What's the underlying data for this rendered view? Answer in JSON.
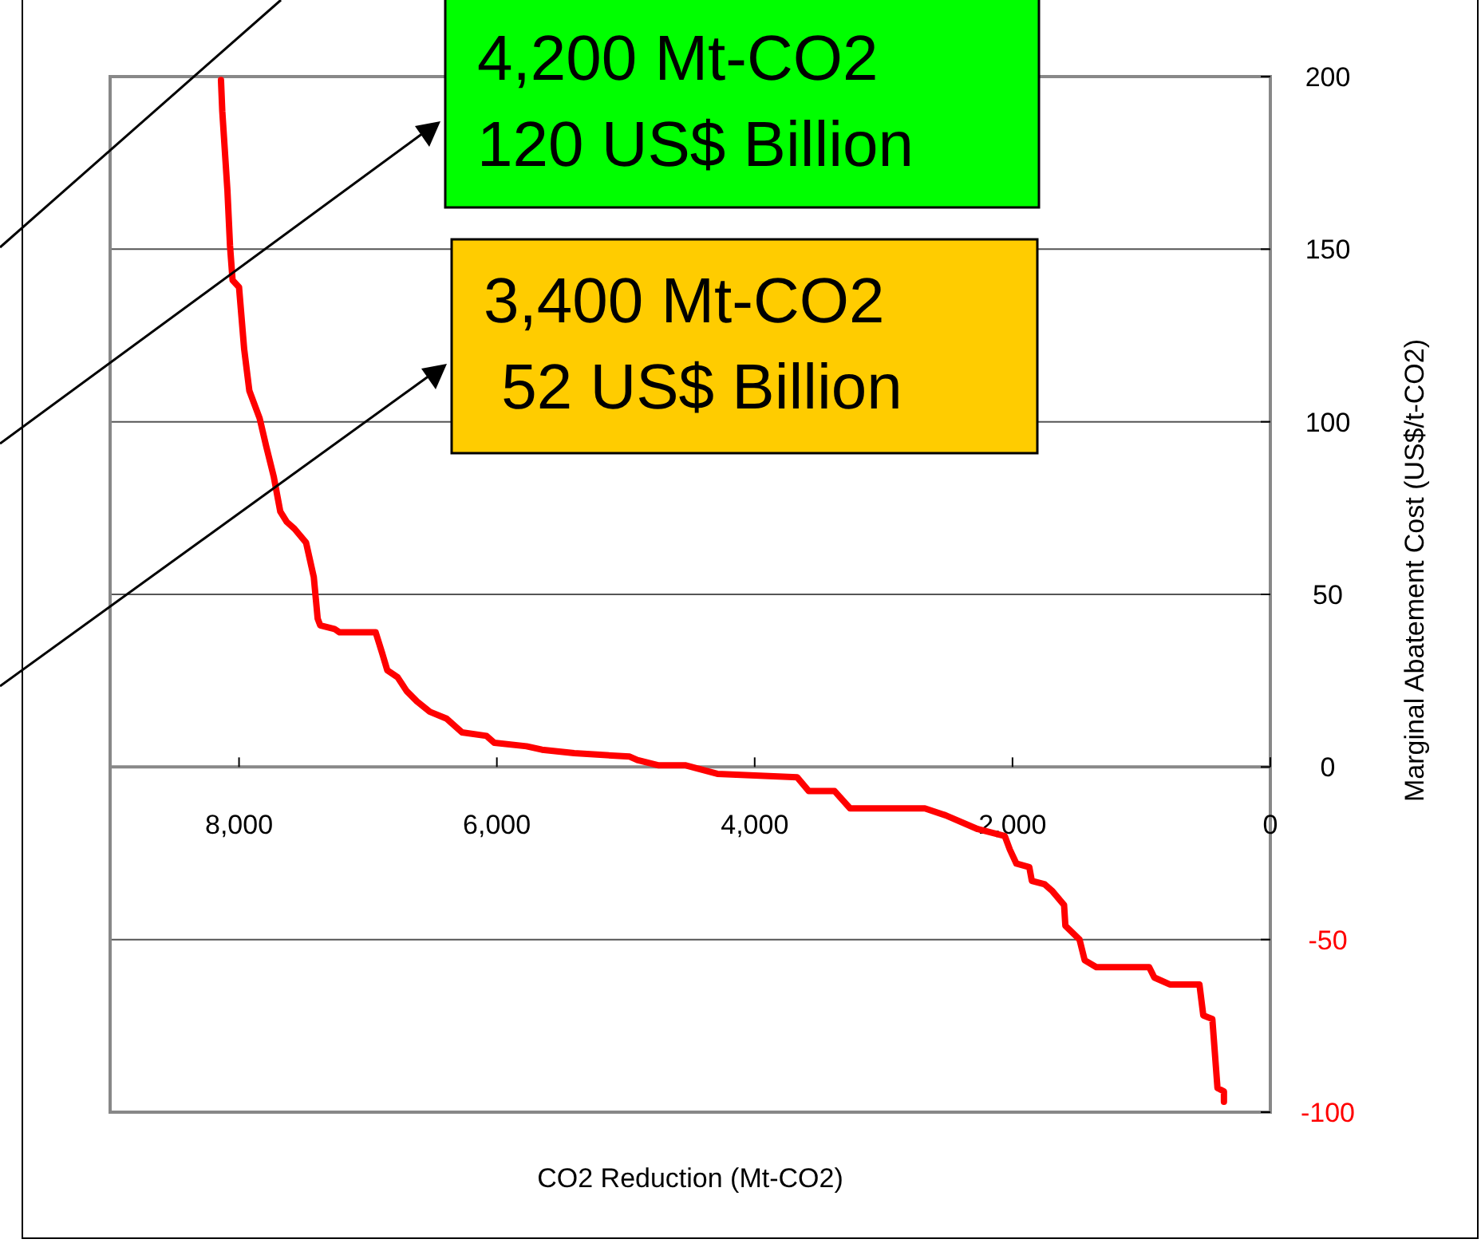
{
  "chart_data": {
    "type": "line",
    "xlabel": "CO2 Reduction (Mt-CO2)",
    "ylabel": "Marginal Abatement Cost (US$/t-CO2)",
    "x": [
      8140,
      8130,
      8090,
      8070,
      8050,
      8000,
      7960,
      7920,
      7840,
      7790,
      7730,
      7680,
      7630,
      7570,
      7480,
      7420,
      7390,
      7370,
      7260,
      7220,
      6940,
      6890,
      6850,
      6770,
      6700,
      6620,
      6520,
      6390,
      6270,
      6080,
      6020,
      5770,
      5650,
      5400,
      4970,
      4910,
      4750,
      4540,
      4290,
      3670,
      3580,
      3380,
      3260,
      2680,
      2520,
      2270,
      2060,
      2020,
      1970,
      1870,
      1850,
      1750,
      1690,
      1600,
      1590,
      1480,
      1440,
      1350,
      940,
      900,
      780,
      550,
      520,
      450,
      410,
      360,
      360
    ],
    "series": [
      {
        "color": "#ff0000",
        "values": [
          199,
          190,
          167,
          151,
          141,
          139,
          121,
          109,
          101,
          93,
          84,
          74,
          71,
          69,
          65,
          55,
          43,
          41,
          40,
          39,
          39,
          33,
          28,
          26,
          22,
          19,
          16,
          14,
          10,
          9,
          7,
          6,
          5,
          4,
          3,
          2,
          0.5,
          0.5,
          -2,
          -3,
          -7,
          -7,
          -12,
          -12,
          -14,
          -18,
          -20,
          -24,
          -28,
          -29,
          -33,
          -34,
          -36,
          -40,
          -46,
          -50,
          -56,
          -58,
          -58,
          -61,
          -63,
          -63,
          -72,
          -73,
          -93,
          -94,
          -97
        ]
      }
    ],
    "xlim": [
      9000,
      0
    ],
    "xticks": [
      {
        "value": 8000,
        "label": "8,000"
      },
      {
        "value": 6000,
        "label": "6,000"
      },
      {
        "value": 4000,
        "label": "4,000"
      },
      {
        "value": 2000,
        "label": "2,000"
      },
      0
    ],
    "ylim": [
      -100,
      200
    ],
    "yticks": [
      -100,
      -50,
      0,
      50,
      100,
      150,
      200
    ],
    "grid": "y",
    "line_style": "solid",
    "marker": "none",
    "annotations": [
      "4,200 Mt-CO2\n120 US$ Billion",
      "3,400 Mt-CO2\n 52 US$ Billion"
    ]
  }
}
